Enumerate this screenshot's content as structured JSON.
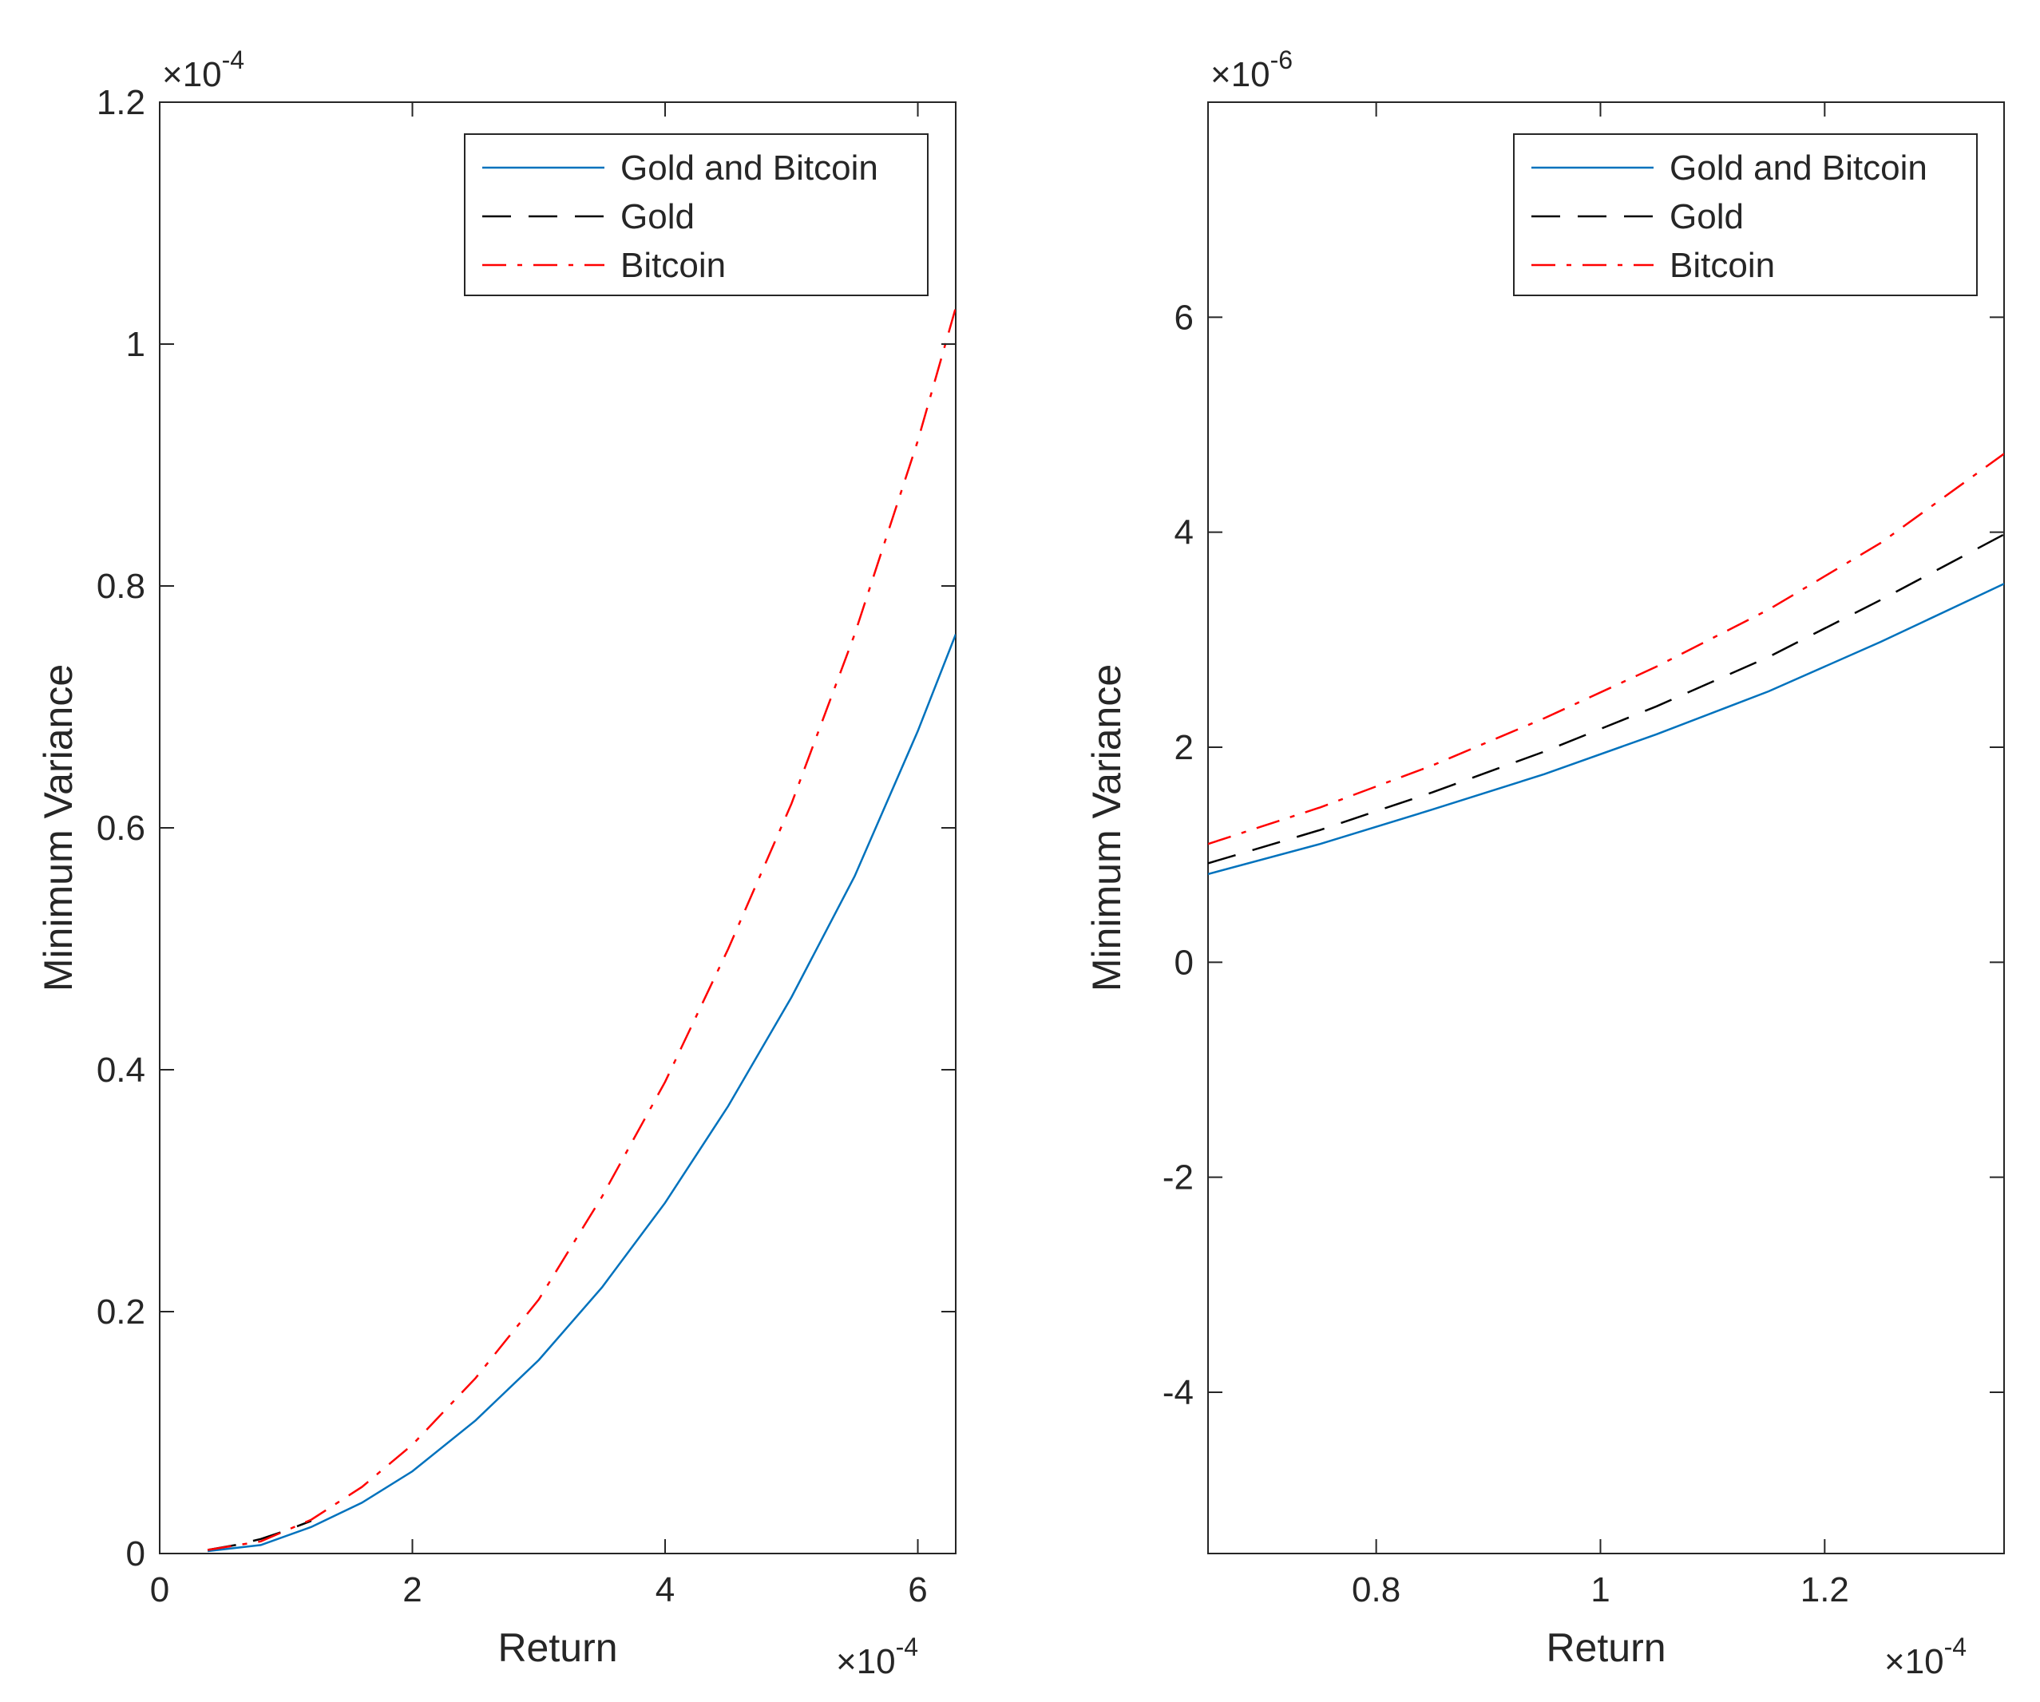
{
  "chart_data": [
    {
      "type": "line",
      "xlabel": "Return",
      "ylabel": "Minimum Variance",
      "x_multiplier": "×10",
      "x_exponent": "-4",
      "y_multiplier": "×10",
      "y_exponent": "-4",
      "xlim": [
        0,
        6.3
      ],
      "ylim": [
        0,
        1.2
      ],
      "xticks": [
        0,
        2,
        4,
        6
      ],
      "xtick_labels": [
        "0",
        "2",
        "4",
        "6"
      ],
      "yticks": [
        0,
        0.2,
        0.4,
        0.6,
        0.8,
        1.0,
        1.2
      ],
      "ytick_labels": [
        "0",
        "0.2",
        "0.4",
        "0.6",
        "0.8",
        "1",
        "1.2"
      ],
      "legend": [
        "Gold and Bitcoin",
        "Gold",
        "Bitcoin"
      ],
      "legend_position": "top-right",
      "series": [
        {
          "name": "Gold and Bitcoin",
          "color": "#0072BD",
          "dash": "solid",
          "x": [
            0.38,
            0.8,
            1.2,
            1.6,
            2.0,
            2.5,
            3.0,
            3.5,
            4.0,
            4.5,
            5.0,
            5.5,
            6.0,
            6.3
          ],
          "y": [
            0.002,
            0.007,
            0.022,
            0.042,
            0.068,
            0.11,
            0.16,
            0.22,
            0.29,
            0.37,
            0.46,
            0.56,
            0.68,
            0.76
          ]
        },
        {
          "name": "Gold",
          "color": "#000000",
          "dash": "dashed",
          "x": [
            0.38,
            0.6,
            0.8,
            1.0,
            1.2
          ],
          "y": [
            0.003,
            0.007,
            0.012,
            0.019,
            0.027
          ]
        },
        {
          "name": "Bitcoin",
          "color": "#FF0000",
          "dash": "dashdot",
          "x": [
            0.38,
            0.8,
            1.2,
            1.6,
            2.0,
            2.5,
            3.0,
            3.5,
            4.0,
            4.5,
            5.0,
            5.5,
            6.0,
            6.3
          ],
          "y": [
            0.003,
            0.01,
            0.028,
            0.055,
            0.09,
            0.145,
            0.21,
            0.295,
            0.39,
            0.5,
            0.62,
            0.76,
            0.92,
            1.03
          ]
        }
      ]
    },
    {
      "type": "line",
      "xlabel": "Return",
      "ylabel": "Minimum Variance",
      "x_multiplier": "×10",
      "x_exponent": "-4",
      "y_multiplier": "×10",
      "y_exponent": "-6",
      "xlim": [
        0.65,
        1.36
      ],
      "ylim": [
        -5.5,
        8
      ],
      "xticks": [
        0.8,
        1.0,
        1.2
      ],
      "xtick_labels": [
        "0.8",
        "1",
        "1.2"
      ],
      "yticks": [
        -4,
        -2,
        0,
        2,
        4,
        6
      ],
      "ytick_labels": [
        "-4",
        "-2",
        "0",
        "2",
        "4",
        "6"
      ],
      "legend": [
        "Gold and Bitcoin",
        "Gold",
        "Bitcoin"
      ],
      "legend_position": "top-right",
      "series": [
        {
          "name": "Gold and Bitcoin",
          "color": "#0072BD",
          "dash": "solid",
          "x": [
            0.65,
            0.75,
            0.85,
            0.95,
            1.05,
            1.15,
            1.25,
            1.36
          ],
          "y": [
            0.82,
            1.1,
            1.42,
            1.75,
            2.12,
            2.52,
            2.98,
            3.52
          ]
        },
        {
          "name": "Gold",
          "color": "#000000",
          "dash": "dashed",
          "x": [
            0.65,
            0.75,
            0.85,
            0.95,
            1.05,
            1.15,
            1.25,
            1.36
          ],
          "y": [
            0.92,
            1.23,
            1.58,
            1.96,
            2.38,
            2.84,
            3.37,
            3.98
          ]
        },
        {
          "name": "Bitcoin",
          "color": "#FF0000",
          "dash": "dashdot",
          "x": [
            0.65,
            0.75,
            0.85,
            0.95,
            1.05,
            1.15,
            1.25,
            1.36
          ],
          "y": [
            1.1,
            1.44,
            1.83,
            2.27,
            2.75,
            3.28,
            3.9,
            4.73
          ]
        }
      ]
    }
  ]
}
